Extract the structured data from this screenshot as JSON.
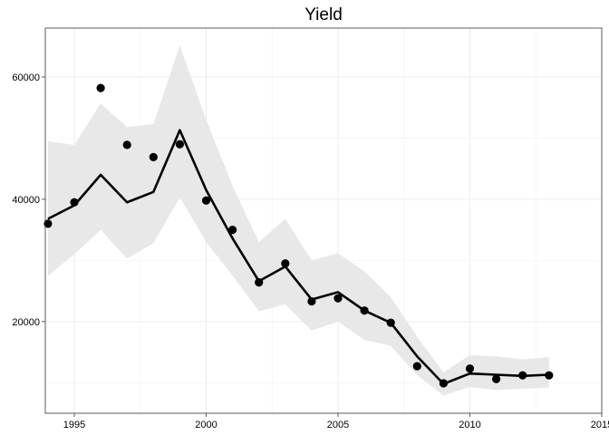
{
  "chart_data": {
    "type": "line",
    "title": "Yield",
    "xlabel": "",
    "ylabel": "",
    "xlim": [
      1993.9,
      2015
    ],
    "ylim": [
      5000,
      68000
    ],
    "x_ticks": [
      1995,
      2000,
      2005,
      2010,
      2015
    ],
    "x_tick_labels": [
      "1995",
      "2000",
      "2005",
      "2010",
      "2015"
    ],
    "y_ticks": [
      20000,
      40000,
      60000
    ],
    "y_tick_labels": [
      "20000",
      "40000",
      "60000"
    ],
    "grid": true,
    "legend": "none",
    "series": [
      {
        "kind": "points",
        "color": "#000000",
        "x": [
          1994,
          1995,
          1996,
          1997,
          1998,
          1999,
          2000,
          2001,
          2002,
          2003,
          2004,
          2005,
          2006,
          2007,
          2008,
          2009,
          2010,
          2011,
          2012,
          2013
        ],
        "y": [
          36000,
          39500,
          58200,
          48900,
          46900,
          49000,
          39800,
          35000,
          26400,
          29500,
          23300,
          23800,
          21800,
          19800,
          12700,
          9900,
          12300,
          10600,
          11200,
          11200
        ]
      },
      {
        "kind": "line",
        "color": "#000000",
        "x": [
          1994,
          1995,
          1996,
          1997,
          1998,
          1999,
          2000,
          2001,
          2002,
          2003,
          2004,
          2005,
          2006,
          2007,
          2008,
          2009,
          2010,
          2011,
          2012,
          2013
        ],
        "y": [
          36800,
          39000,
          44000,
          39500,
          41200,
          51300,
          41500,
          33600,
          26600,
          29000,
          23600,
          24800,
          21800,
          19800,
          14300,
          9800,
          11500,
          11300,
          11100,
          11300
        ]
      },
      {
        "kind": "band",
        "color": "#e8e8e8",
        "x": [
          1994,
          1995,
          1996,
          1997,
          1998,
          1999,
          2000,
          2001,
          2002,
          2003,
          2004,
          2005,
          2006,
          2007,
          2008,
          2009,
          2010,
          2011,
          2012,
          2013
        ],
        "lower": [
          27500,
          31000,
          35000,
          30300,
          32800,
          40300,
          33000,
          27500,
          21700,
          22800,
          18500,
          20000,
          17000,
          16000,
          11200,
          7900,
          9300,
          8800,
          9000,
          9200
        ],
        "upper": [
          49500,
          48900,
          55700,
          51800,
          52300,
          65200,
          53000,
          42200,
          33000,
          36800,
          30000,
          31200,
          28200,
          24000,
          17500,
          11700,
          14500,
          14300,
          13800,
          14200
        ]
      }
    ]
  }
}
